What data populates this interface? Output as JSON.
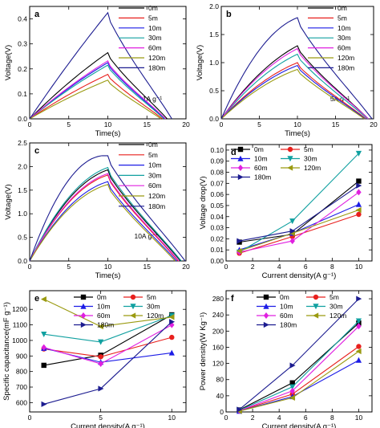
{
  "colors": {
    "0m": "#000000",
    "5m": "#e8201e",
    "10m": "#1c1ce6",
    "30m": "#10a0a0",
    "60m": "#e020e0",
    "120m": "#9a9a10",
    "180m": "#1c1c90"
  },
  "chart_data": [
    {
      "id": "a",
      "type": "line",
      "panel_label": "a",
      "xlabel": "Time(s)",
      "ylabel": "Voltage(V)",
      "xlim": [
        0,
        20
      ],
      "ylim": [
        0,
        0.45
      ],
      "xticks": [
        0,
        5,
        10,
        15,
        20
      ],
      "yticks": [
        0.0,
        0.1,
        0.2,
        0.3,
        0.4
      ],
      "yticklabels": [
        "0.0",
        "0.1",
        "0.2",
        "0.3",
        "0.4"
      ],
      "annotation": "1A g⁻¹",
      "legend": "top-right",
      "series": [
        {
          "name": "0m",
          "peak_x": 10,
          "peak": 0.265,
          "end_x": 17.6,
          "curv": 0.4
        },
        {
          "name": "5m",
          "peak_x": 10,
          "peak": 0.178,
          "end_x": 17.0,
          "curv": 0.4
        },
        {
          "name": "10m",
          "peak_x": 10,
          "peak": 0.225,
          "end_x": 17.3,
          "curv": 0.4
        },
        {
          "name": "30m",
          "peak_x": 10,
          "peak": 0.215,
          "end_x": 17.2,
          "curv": 0.4
        },
        {
          "name": "60m",
          "peak_x": 10,
          "peak": 0.232,
          "end_x": 17.4,
          "curv": 0.4
        },
        {
          "name": "120m",
          "peak_x": 10,
          "peak": 0.155,
          "end_x": 16.8,
          "curv": 0.4
        },
        {
          "name": "180m",
          "peak_x": 10,
          "peak": 0.425,
          "end_x": 18.2,
          "curv": 0.2
        }
      ]
    },
    {
      "id": "b",
      "type": "line",
      "panel_label": "b",
      "xlabel": "Time(s)",
      "ylabel": "Voltage(V)",
      "xlim": [
        0,
        20
      ],
      "ylim": [
        0,
        2.0
      ],
      "xticks": [
        0,
        5,
        10,
        15,
        20
      ],
      "yticks": [
        0.0,
        0.5,
        1.0,
        1.5,
        2.0
      ],
      "yticklabels": [
        "0.0",
        "0.5",
        "1.0",
        "1.5",
        "2.0"
      ],
      "annotation": "5A g⁻¹",
      "legend": "top-right",
      "series": [
        {
          "name": "0m",
          "peak_x": 10,
          "peak": 1.3,
          "end_x": 19.3,
          "curv": 1.0
        },
        {
          "name": "5m",
          "peak_x": 10,
          "peak": 1.0,
          "end_x": 19.0,
          "curv": 1.0
        },
        {
          "name": "10m",
          "peak_x": 10,
          "peak": 0.95,
          "end_x": 18.9,
          "curv": 1.0
        },
        {
          "name": "30m",
          "peak_x": 10,
          "peak": 1.15,
          "end_x": 19.2,
          "curv": 1.0
        },
        {
          "name": "60m",
          "peak_x": 10,
          "peak": 1.25,
          "end_x": 19.3,
          "curv": 1.0
        },
        {
          "name": "120m",
          "peak_x": 10,
          "peak": 0.88,
          "end_x": 18.8,
          "curv": 1.0
        },
        {
          "name": "180m",
          "peak_x": 10,
          "peak": 1.8,
          "end_x": 19.8,
          "curv": 1.6
        }
      ]
    },
    {
      "id": "c",
      "type": "line",
      "panel_label": "c",
      "xlabel": "Time(s)",
      "ylabel": "Voltage(V)",
      "xlim": [
        0,
        20
      ],
      "ylim": [
        0,
        2.5
      ],
      "xticks": [
        0,
        5,
        10,
        15,
        20
      ],
      "yticks": [
        0.0,
        0.5,
        1.0,
        1.5,
        2.0,
        2.5
      ],
      "yticklabels": [
        "0.0",
        "0.5",
        "1.0",
        "1.5",
        "2.0",
        "2.5"
      ],
      "annotation": "10A g⁻¹",
      "legend": "top-right",
      "series": [
        {
          "name": "0m",
          "peak_x": 10,
          "peak": 1.93,
          "end_x": 19.3,
          "curv": 1.6
        },
        {
          "name": "5m",
          "peak_x": 10,
          "peak": 1.82,
          "end_x": 19.0,
          "curv": 1.6
        },
        {
          "name": "10m",
          "peak_x": 10,
          "peak": 1.68,
          "end_x": 18.8,
          "curv": 1.6
        },
        {
          "name": "30m",
          "peak_x": 10,
          "peak": 1.98,
          "end_x": 19.4,
          "curv": 1.6
        },
        {
          "name": "60m",
          "peak_x": 10,
          "peak": 1.85,
          "end_x": 19.1,
          "curv": 1.6
        },
        {
          "name": "120m",
          "peak_x": 10,
          "peak": 1.62,
          "end_x": 18.6,
          "curv": 1.6
        },
        {
          "name": "180m",
          "peak_x": 10,
          "peak": 2.23,
          "end_x": 19.9,
          "curv": 2.4
        }
      ]
    },
    {
      "id": "d",
      "type": "line",
      "panel_label": "d",
      "xlabel": "Current density(A g⁻¹)",
      "ylabel": "Voltage drop(V)",
      "xlim": [
        0,
        11
      ],
      "ylim": [
        0,
        0.105
      ],
      "xticks": [
        0,
        2,
        4,
        6,
        8,
        10
      ],
      "yticks": [
        0.0,
        0.01,
        0.02,
        0.03,
        0.04,
        0.05,
        0.06,
        0.07,
        0.08,
        0.09,
        0.1
      ],
      "yticklabels": [
        "0.00",
        "0.01",
        "0.02",
        "0.03",
        "0.04",
        "0.05",
        "0.06",
        "0.07",
        "0.08",
        "0.09",
        "0.10"
      ],
      "legend": "top-left",
      "series": [
        {
          "name": "0m",
          "x": [
            1,
            5,
            10
          ],
          "y": [
            0.017,
            0.024,
            0.072
          ]
        },
        {
          "name": "5m",
          "x": [
            1,
            5,
            10
          ],
          "y": [
            0.007,
            0.022,
            0.042
          ]
        },
        {
          "name": "10m",
          "x": [
            1,
            5,
            10
          ],
          "y": [
            0.01,
            0.025,
            0.051
          ]
        },
        {
          "name": "30m",
          "x": [
            1,
            5,
            10
          ],
          "y": [
            0.008,
            0.036,
            0.097
          ]
        },
        {
          "name": "60m",
          "x": [
            1,
            5,
            10
          ],
          "y": [
            0.008,
            0.018,
            0.062
          ]
        },
        {
          "name": "120m",
          "x": [
            1,
            5,
            10
          ],
          "y": [
            0.009,
            0.025,
            0.046
          ]
        },
        {
          "name": "180m",
          "x": [
            1,
            5,
            10
          ],
          "y": [
            0.018,
            0.027,
            0.068
          ]
        }
      ]
    },
    {
      "id": "e",
      "type": "line",
      "panel_label": "e",
      "xlabel": "Current density(A g⁻¹)",
      "ylabel": "Specific capacitance(mF g⁻¹)",
      "xlim": [
        0,
        11
      ],
      "ylim": [
        540,
        1320
      ],
      "xticks": [
        0,
        5,
        10
      ],
      "yticks": [
        600,
        700,
        800,
        900,
        1000,
        1100,
        1200
      ],
      "yticklabels": [
        "600",
        "700",
        "800",
        "900",
        "1000",
        "1100",
        "1200"
      ],
      "legend": "top",
      "series": [
        {
          "name": "0m",
          "x": [
            1,
            5,
            10
          ],
          "y": [
            840,
            905,
            1165
          ]
        },
        {
          "name": "5m",
          "x": [
            1,
            5,
            10
          ],
          "y": [
            945,
            895,
            1020
          ]
        },
        {
          "name": "10m",
          "x": [
            1,
            5,
            10
          ],
          "y": [
            950,
            860,
            920
          ]
        },
        {
          "name": "30m",
          "x": [
            1,
            5,
            10
          ],
          "y": [
            1040,
            990,
            1160
          ]
        },
        {
          "name": "60m",
          "x": [
            1,
            5,
            10
          ],
          "y": [
            955,
            850,
            1100
          ]
        },
        {
          "name": "120m",
          "x": [
            1,
            5,
            10
          ],
          "y": [
            1265,
            1090,
            1150
          ]
        },
        {
          "name": "180m",
          "x": [
            1,
            5,
            10
          ],
          "y": [
            590,
            690,
            1120
          ]
        }
      ]
    },
    {
      "id": "f",
      "type": "line",
      "panel_label": "f",
      "xlabel": "Current density(A g⁻¹)",
      "ylabel": "Power density(W Kg⁻¹)",
      "xlim": [
        0,
        11
      ],
      "ylim": [
        0,
        300
      ],
      "xticks": [
        0,
        2,
        4,
        6,
        8,
        10
      ],
      "yticks": [
        0,
        40,
        80,
        120,
        160,
        200,
        240,
        280
      ],
      "yticklabels": [
        "0",
        "40",
        "80",
        "120",
        "160",
        "200",
        "240",
        "280"
      ],
      "legend": "top-left",
      "series": [
        {
          "name": "0m",
          "x": [
            1,
            5,
            10
          ],
          "y": [
            5,
            72,
            220
          ]
        },
        {
          "name": "5m",
          "x": [
            1,
            5,
            10
          ],
          "y": [
            3,
            44,
            162
          ]
        },
        {
          "name": "10m",
          "x": [
            1,
            5,
            10
          ],
          "y": [
            2,
            38,
            128
          ]
        },
        {
          "name": "30m",
          "x": [
            1,
            5,
            10
          ],
          "y": [
            4,
            62,
            225
          ]
        },
        {
          "name": "60m",
          "x": [
            1,
            5,
            10
          ],
          "y": [
            3,
            52,
            212
          ]
        },
        {
          "name": "120m",
          "x": [
            1,
            5,
            10
          ],
          "y": [
            2,
            35,
            150
          ]
        },
        {
          "name": "180m",
          "x": [
            1,
            5,
            10
          ],
          "y": [
            6,
            115,
            280
          ]
        }
      ]
    }
  ]
}
